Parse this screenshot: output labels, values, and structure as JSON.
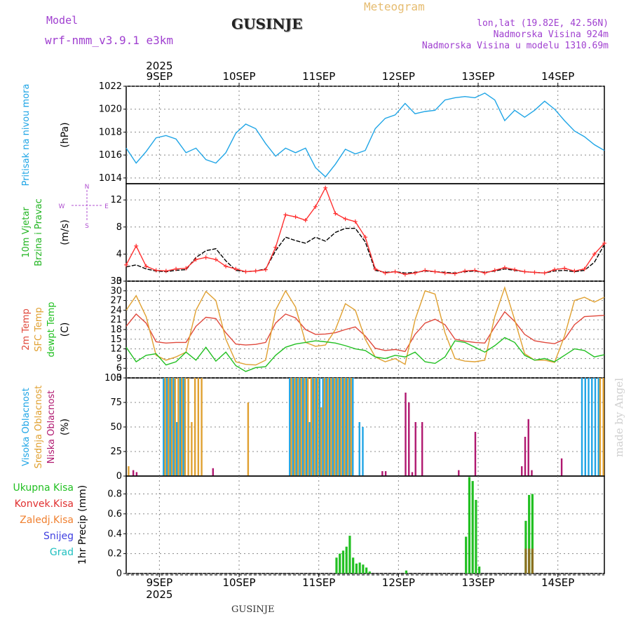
{
  "header": {
    "model_label": "Model",
    "model_name": "wrf-nmm_v3.9.1 e3km",
    "product": "Meteogram",
    "location": "GUSINJE",
    "coords": "lon,lat (19.82E, 42.56N)",
    "elevation": "Nadmorska Visina 924m",
    "model_elevation": "Nadmorska Visina u modelu 1310.69m",
    "footer_location": "GUSINJE",
    "watermark": "made by Angel"
  },
  "colors": {
    "pressure": "#1fa5e6",
    "wind_label": "#22b522",
    "wind_speed_model": "#000000",
    "wind_gust": "#ff3030",
    "temp_2m": "#e0483b",
    "temp_sfc": "#e0a030",
    "temp_dew": "#22c022",
    "cloud_high": "#1fa5e6",
    "cloud_mid": "#e0a030",
    "cloud_low": "#b01870",
    "precip_total": "#22c022",
    "precip_conv": "#e03030",
    "precip_frz": "#f08030",
    "precip_snow": "#4040e0",
    "precip_hail": "#20c0c0"
  },
  "chart_data": {
    "type": "line",
    "time_axis": {
      "year_label": "2025",
      "start": "2025-09-08 14:00",
      "end": "2025-09-14 14:00",
      "days": [
        "9SEP",
        "10SEP",
        "11SEP",
        "12SEP",
        "13SEP",
        "14SEP"
      ]
    },
    "panels": [
      {
        "id": "pressure",
        "ylabel_lines": [
          "Pritisak na nivou mora"
        ],
        "unit": "(hPa)",
        "ylim": [
          1013.5,
          1022
        ],
        "yticks": [
          1014,
          1016,
          1018,
          1020,
          1022
        ],
        "series": [
          {
            "name": "Pritisak na nivou mora",
            "x": [
              0,
              3,
              6,
              9,
              12,
              15,
              18,
              21,
              24,
              27,
              30,
              33,
              36,
              39,
              42,
              45,
              48,
              51,
              54,
              57,
              60,
              63,
              66,
              69,
              72,
              75,
              78,
              81,
              84,
              87,
              90,
              93,
              96,
              99,
              102,
              105,
              108,
              111,
              114,
              117,
              120,
              123,
              126,
              129,
              132,
              135,
              138,
              141,
              144
            ],
            "y": [
              1016.6,
              1015.3,
              1016.3,
              1017.5,
              1017.7,
              1017.4,
              1016.2,
              1016.6,
              1015.6,
              1015.3,
              1016.2,
              1017.9,
              1018.7,
              1018.3,
              1017.0,
              1015.9,
              1016.6,
              1016.2,
              1016.6,
              1014.9,
              1014.1,
              1015.2,
              1016.5,
              1016.1,
              1016.4,
              1018.3,
              1019.2,
              1019.5,
              1020.5,
              1019.6,
              1019.8,
              1019.9,
              1020.8,
              1021.0,
              1021.1,
              1021.0,
              1021.4,
              1020.8,
              1019.0,
              1019.9,
              1019.3,
              1019.9,
              1020.7,
              1020.0,
              1019.0,
              1018.1,
              1017.6,
              1016.9,
              1016.4
            ]
          }
        ]
      },
      {
        "id": "wind",
        "ylabel_lines": [
          "10m Vjetar",
          "Brzina i Pravac"
        ],
        "unit": "(m/s)",
        "direction_key": [
          "N",
          "E",
          "S",
          "W"
        ],
        "ylim": [
          0,
          14.4
        ],
        "yticks": [
          0,
          4,
          8,
          12
        ],
        "series": [
          {
            "name": "wind speed",
            "x": [
              0,
              3,
              6,
              9,
              12,
              15,
              18,
              21,
              24,
              27,
              30,
              33,
              36,
              39,
              42,
              45,
              48,
              51,
              54,
              57,
              60,
              63,
              66,
              69,
              72,
              75,
              78,
              81,
              84,
              87,
              90,
              93,
              96,
              99,
              102,
              105,
              108,
              111,
              114,
              117,
              120,
              123,
              126,
              129,
              132,
              135,
              138,
              141,
              144
            ],
            "y": [
              2.1,
              2.4,
              1.8,
              1.5,
              1.4,
              1.6,
              1.7,
              3.5,
              4.5,
              4.8,
              3.0,
              1.6,
              1.4,
              1.5,
              1.8,
              4.5,
              6.5,
              6.0,
              5.6,
              6.5,
              5.9,
              7.2,
              7.8,
              7.8,
              5.8,
              1.6,
              1.3,
              1.4,
              1.2,
              1.3,
              1.5,
              1.4,
              1.3,
              1.2,
              1.4,
              1.5,
              1.3,
              1.5,
              1.8,
              1.6,
              1.4,
              1.3,
              1.2,
              1.5,
              1.6,
              1.4,
              1.6,
              2.8,
              5.4
            ]
          },
          {
            "name": "wind gust",
            "x": [
              0,
              3,
              6,
              9,
              12,
              15,
              18,
              21,
              24,
              27,
              30,
              33,
              36,
              39,
              42,
              45,
              48,
              51,
              54,
              57,
              60,
              63,
              66,
              69,
              72,
              75,
              78,
              81,
              84,
              87,
              90,
              93,
              96,
              99,
              102,
              105,
              108,
              111,
              114,
              117,
              120,
              123,
              126,
              129,
              132,
              135,
              138,
              141,
              144
            ],
            "y": [
              2.4,
              5.2,
              2.2,
              1.6,
              1.5,
              1.8,
              1.9,
              3.2,
              3.5,
              3.2,
              2.2,
              1.8,
              1.4,
              1.5,
              1.7,
              5.0,
              9.8,
              9.5,
              9.0,
              11.0,
              13.8,
              10.0,
              9.2,
              8.8,
              6.5,
              1.8,
              1.2,
              1.4,
              1.0,
              1.2,
              1.6,
              1.4,
              1.2,
              1.1,
              1.5,
              1.6,
              1.2,
              1.6,
              2.0,
              1.7,
              1.4,
              1.3,
              1.2,
              1.7,
              1.9,
              1.5,
              1.8,
              4.0,
              5.6
            ]
          }
        ]
      },
      {
        "id": "temperature",
        "ylabel_lines": [
          "2m Temp",
          "SFC Temp",
          "dewpt Temp"
        ],
        "unit": "(C)",
        "ylim": [
          3,
          33
        ],
        "yticks": [
          3,
          6,
          9,
          12,
          15,
          18,
          21,
          24,
          27,
          30,
          33
        ],
        "series": [
          {
            "name": "2m Temp",
            "x": [
              0,
              3,
              6,
              9,
              12,
              15,
              18,
              21,
              24,
              27,
              30,
              33,
              36,
              39,
              42,
              45,
              48,
              51,
              54,
              57,
              60,
              63,
              66,
              69,
              72,
              75,
              78,
              81,
              84,
              87,
              90,
              93,
              96,
              99,
              102,
              105,
              108,
              111,
              114,
              117,
              120,
              123,
              126,
              129,
              132,
              135,
              138,
              141,
              144
            ],
            "y": [
              19.0,
              22.8,
              20.0,
              14.2,
              13.8,
              14.0,
              14.0,
              19.0,
              21.8,
              21.4,
              17.0,
              13.5,
              13.2,
              13.4,
              14.0,
              20.0,
              22.8,
              21.6,
              18.0,
              16.5,
              16.6,
              17.0,
              18.0,
              18.8,
              16.0,
              12.2,
              11.5,
              11.8,
              11.2,
              16.5,
              20.0,
              21.2,
              19.5,
              15.0,
              14.4,
              14.0,
              13.8,
              18.8,
              23.5,
              20.5,
              16.5,
              14.5,
              14.0,
              13.6,
              15.0,
              19.5,
              22.0,
              22.2,
              22.4
            ]
          },
          {
            "name": "SFC Temp",
            "x": [
              0,
              3,
              6,
              9,
              12,
              15,
              18,
              21,
              24,
              27,
              30,
              33,
              36,
              39,
              42,
              45,
              48,
              51,
              54,
              57,
              60,
              63,
              66,
              69,
              72,
              75,
              78,
              81,
              84,
              87,
              90,
              93,
              96,
              99,
              102,
              105,
              108,
              111,
              114,
              117,
              120,
              123,
              126,
              129,
              132,
              135,
              138,
              141,
              144
            ],
            "y": [
              24.0,
              28.5,
              22.0,
              10.0,
              8.5,
              9.5,
              11.0,
              24.0,
              29.8,
              27.0,
              15.0,
              8.0,
              7.2,
              7.0,
              8.5,
              24.0,
              30.0,
              25.0,
              14.0,
              12.8,
              13.2,
              18.0,
              26.0,
              24.0,
              15.0,
              9.5,
              8.0,
              9.0,
              7.2,
              21.0,
              30.0,
              29.0,
              17.0,
              9.0,
              8.2,
              8.0,
              8.5,
              22.0,
              31.0,
              21.0,
              10.5,
              8.5,
              8.5,
              7.8,
              16.0,
              27.0,
              28.0,
              26.5,
              28.0
            ]
          },
          {
            "name": "dewpt Temp",
            "x": [
              0,
              3,
              6,
              9,
              12,
              15,
              18,
              21,
              24,
              27,
              30,
              33,
              36,
              39,
              42,
              45,
              48,
              51,
              54,
              57,
              60,
              63,
              66,
              69,
              72,
              75,
              78,
              81,
              84,
              87,
              90,
              93,
              96,
              99,
              102,
              105,
              108,
              111,
              114,
              117,
              120,
              123,
              126,
              129,
              132,
              135,
              138,
              141,
              144
            ],
            "y": [
              12.5,
              8.0,
              10.0,
              10.5,
              7.0,
              8.0,
              11.0,
              8.5,
              12.5,
              8.2,
              11.0,
              6.8,
              5.0,
              6.2,
              6.5,
              10.0,
              12.5,
              13.5,
              14.0,
              14.5,
              14.2,
              13.8,
              13.0,
              12.0,
              11.5,
              9.5,
              9.0,
              10.0,
              9.5,
              11.0,
              8.0,
              7.5,
              9.5,
              14.5,
              14.0,
              12.5,
              11.0,
              13.0,
              15.5,
              14.0,
              10.0,
              8.5,
              9.0,
              8.0,
              10.0,
              12.0,
              11.5,
              9.5,
              10.2
            ]
          }
        ]
      },
      {
        "id": "clouds",
        "ylabel_lines": [
          "Visoka Oblacnost",
          "Srednja Oblacnost",
          "Niska Oblacnost"
        ],
        "unit": "(%)",
        "ylim": [
          0,
          100
        ],
        "yticks": [
          0,
          25,
          50,
          75,
          100
        ],
        "series": [
          {
            "name": "Visoka Oblacnost",
            "x": [
              11,
              12,
              13,
              14,
              15,
              16,
              17,
              49,
              50,
              51,
              52,
              53,
              54,
              55,
              56,
              57,
              58,
              59,
              60,
              61,
              62,
              63,
              64,
              65,
              66,
              67,
              68,
              70,
              71,
              137,
              138,
              139,
              140,
              141,
              142
            ],
            "y": [
              100,
              100,
              100,
              100,
              55,
              100,
              100,
              100,
              100,
              100,
              100,
              100,
              100,
              55,
              100,
              100,
              100,
              100,
              100,
              100,
              100,
              100,
              100,
              100,
              100,
              100,
              100,
              55,
              50,
              100,
              100,
              100,
              100,
              100,
              100
            ]
          },
          {
            "name": "Srednja Oblacnost",
            "x": [
              0,
              11,
              12,
              13,
              14,
              15,
              16,
              17,
              18,
              19,
              20,
              21,
              22,
              36,
              49,
              50,
              51,
              52,
              53,
              54,
              55,
              56,
              57,
              58,
              59,
              60,
              61,
              62,
              63,
              64,
              65,
              66,
              67,
              142,
              143
            ],
            "y": [
              10,
              100,
              100,
              100,
              100,
              100,
              100,
              100,
              100,
              55,
              100,
              100,
              100,
              75,
              100,
              100,
              100,
              100,
              100,
              100,
              100,
              100,
              100,
              70,
              100,
              100,
              100,
              100,
              100,
              100,
              100,
              100,
              100,
              100,
              100
            ]
          },
          {
            "name": "Niska Oblacnost",
            "x": [
              1,
              2,
              25,
              76,
              77,
              83,
              84,
              85,
              86,
              88,
              99,
              104,
              118,
              119,
              120,
              121,
              130
            ],
            "y": [
              6,
              4,
              8,
              5,
              5,
              85,
              75,
              4,
              55,
              55,
              6,
              45,
              10,
              40,
              58,
              6,
              18
            ]
          }
        ]
      },
      {
        "id": "precip",
        "ylabel_lines": [
          "Ukupna Kisa",
          "Konvek.Kisa",
          "Zaledj.Kisa",
          "Snijeg",
          "Grad"
        ],
        "unit": "1hr Precip (mm)",
        "ylim": [
          0,
          0.98
        ],
        "yticks": [
          0,
          0.2,
          0.4,
          0.6,
          0.8
        ],
        "series": [
          {
            "name": "Ukupna Kisa",
            "x": [
              63,
              64,
              65,
              66,
              67,
              68,
              69,
              70,
              71,
              72,
              73,
              84,
              102,
              103,
              104,
              105,
              106,
              120,
              121,
              122
            ],
            "y": [
              0.16,
              0.2,
              0.23,
              0.27,
              0.38,
              0.16,
              0.1,
              0.11,
              0.09,
              0.06,
              0.02,
              0.03,
              0.37,
              0.97,
              0.93,
              0.74,
              0.07,
              0.53,
              0.79,
              0.8
            ]
          },
          {
            "name": "Konvek.Kisa",
            "x": [
              120,
              121,
              122
            ],
            "y": [
              0.25,
              0.25,
              0.25
            ]
          }
        ]
      }
    ]
  }
}
